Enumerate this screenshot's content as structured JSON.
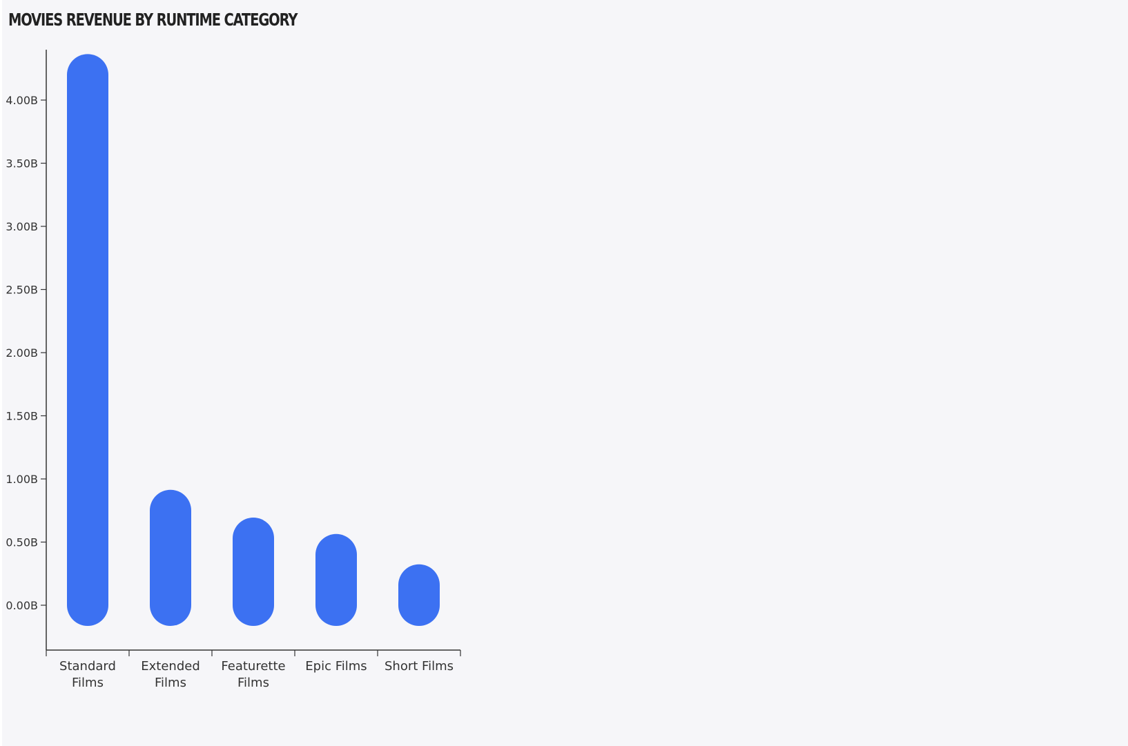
{
  "chart_data": {
    "type": "bar",
    "title": "MOVIES REVENUE BY RUNTIME CATEGORY",
    "xlabel": "",
    "ylabel": "",
    "categories": [
      [
        "Standard",
        "Films"
      ],
      [
        "Extended",
        "Films"
      ],
      [
        "Featurette",
        "Films"
      ],
      [
        "Epic Films"
      ],
      [
        "Short Films"
      ]
    ],
    "values": [
      4.2,
      0.75,
      0.53,
      0.4,
      0.16
    ],
    "unit": "B",
    "ylim": [
      -0.35,
      4.4
    ],
    "yticks": [
      "0.00B",
      "0.50B",
      "1.00B",
      "1.50B",
      "2.00B",
      "2.50B",
      "3.00B",
      "3.50B",
      "4.00B"
    ],
    "ytick_values": [
      0,
      0.5,
      1.0,
      1.5,
      2.0,
      2.5,
      3.0,
      3.5,
      4.0
    ],
    "bar_color": "#3c71f2",
    "bar_style": "rounded capsule, capped from 0 baseline",
    "grid": false,
    "legend": "none"
  }
}
